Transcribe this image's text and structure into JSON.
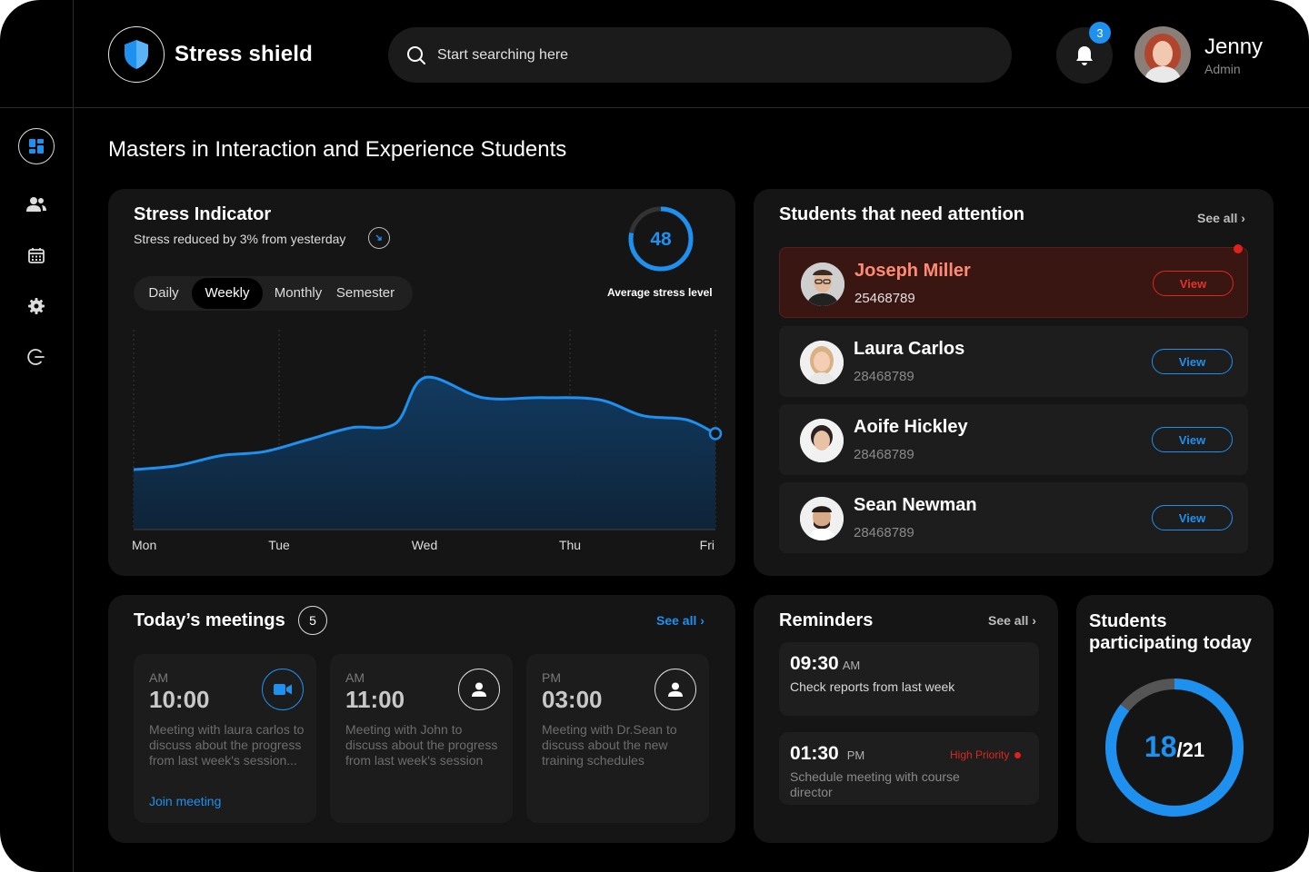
{
  "app": {
    "brand": "Stress shield",
    "search_placeholder": "Start searching here",
    "notifications_count": "3",
    "user": {
      "name": "Jenny",
      "role": "Admin"
    }
  },
  "nav": {
    "items": [
      "dashboard",
      "students",
      "calendar",
      "settings",
      "logout"
    ]
  },
  "page": {
    "title": "Masters in Interaction and Experience Students"
  },
  "stress": {
    "title": "Stress Indicator",
    "subtitle": "Stress reduced by 3% from yesterday",
    "avg_value": "48",
    "avg_label": "Average stress level",
    "avg_fraction": 0.78,
    "tabs": [
      "Daily",
      "Weekly",
      "Monthly",
      "Semester"
    ],
    "active_tab": "Weekly"
  },
  "chart_data": {
    "type": "area",
    "title": "Stress Indicator",
    "categories": [
      "Mon",
      "Tue",
      "Wed",
      "Thu",
      "Fri"
    ],
    "x": [
      0,
      0.3,
      0.6,
      0.9,
      1.2,
      1.5,
      1.8,
      2.0,
      2.4,
      2.8,
      3.2,
      3.5,
      3.8,
      4.0
    ],
    "values": [
      30,
      32,
      37,
      39,
      45,
      51,
      53,
      76,
      66,
      66,
      65,
      57,
      55,
      48
    ],
    "ylim": [
      0,
      100
    ],
    "xlabel": "",
    "ylabel": "",
    "grid": "vertical dashed",
    "color": "#1e90f0"
  },
  "attention": {
    "title": "Students that need attention",
    "see_all": "See all",
    "students": [
      {
        "name": "Joseph Miller",
        "id": "25468789",
        "action": "View",
        "alert": true
      },
      {
        "name": "Laura Carlos",
        "id": "28468789",
        "action": "View",
        "alert": false
      },
      {
        "name": "Aoife Hickley",
        "id": "28468789",
        "action": "View",
        "alert": false
      },
      {
        "name": "Sean Newman",
        "id": "28468789",
        "action": "View",
        "alert": false
      }
    ]
  },
  "meetings": {
    "title": "Today’s meetings",
    "count": "5",
    "see_all": "See all",
    "items": [
      {
        "ampm": "AM",
        "time": "10:00",
        "desc": "Meeting with laura carlos to discuss about the progress from last week's session...",
        "link": "Join meeting",
        "icon": "video-icon"
      },
      {
        "ampm": "AM",
        "time": "11:00",
        "desc": "Meeting with John to discuss about the progress from last week's session",
        "icon": "person-icon"
      },
      {
        "ampm": "PM",
        "time": "03:00",
        "desc": "Meeting with Dr.Sean to discuss about the new training schedules",
        "icon": "person-icon"
      }
    ]
  },
  "reminders": {
    "title": "Reminders",
    "see_all": "See all",
    "items": [
      {
        "time": "09:30",
        "ampm": "AM",
        "desc": "Check reports from last week",
        "priority": ""
      },
      {
        "time": "01:30",
        "ampm": "PM",
        "desc": "Schedule meeting with course director",
        "priority": "High Priority"
      }
    ]
  },
  "participation": {
    "title": "Students participating today",
    "count": "18",
    "total": "/21",
    "fraction": 0.857
  },
  "colors": {
    "accent": "#1e90f0",
    "alert": "#d9281f",
    "card": "#151515",
    "bg": "#000000"
  }
}
